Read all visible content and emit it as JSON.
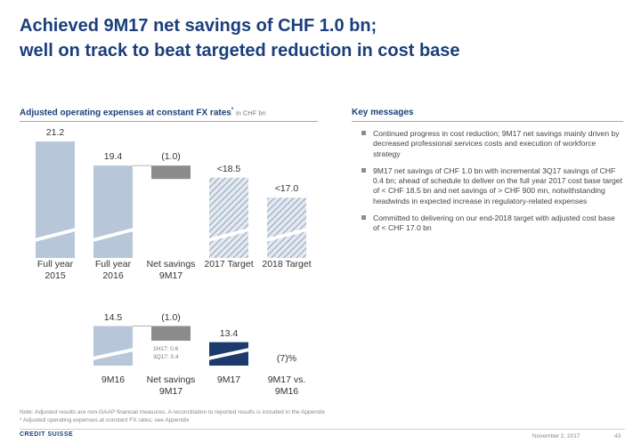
{
  "header": {
    "title": [
      "Achieved 9M17 net savings of CHF 1.0 bn;",
      "well on track to beat targeted reduction in cost base"
    ]
  },
  "chart_data": [
    {
      "type": "waterfall",
      "title": "Adjusted operating expenses at constant FX rates",
      "title_marker": "*",
      "unit": "in CHF bn",
      "categories": [
        "Full year 2015",
        "Full year 2016",
        "Net savings 9M17",
        "2017 Target",
        "2018 Target"
      ],
      "values": [
        21.2,
        19.4,
        -1.0,
        18.5,
        17.0
      ],
      "value_labels": [
        "21.2",
        "19.4",
        "(1.0)",
        "<18.5",
        "<17.0"
      ],
      "kinds": [
        "total",
        "total",
        "delta",
        "total",
        "total"
      ],
      "colors": [
        "#b7c6d8",
        "#b7c6d8",
        "#8c8c8c",
        "#8ea2ba",
        "#8ea2ba"
      ],
      "hatched": [
        false,
        false,
        false,
        true,
        true
      ],
      "ylim": [
        12.5,
        22
      ]
    },
    {
      "type": "waterfall",
      "categories": [
        "9M16",
        "Net savings 9M17",
        "9M17",
        "9M17 vs. 9M16"
      ],
      "values": [
        14.5,
        -1.0,
        13.4,
        -7
      ],
      "value_labels": [
        "14.5",
        "(1.0)",
        "13.4",
        "(7)%"
      ],
      "kinds": [
        "total",
        "delta",
        "total",
        "change"
      ],
      "colors": [
        "#b7c6d8",
        "#8c8c8c",
        "#1c3a6b",
        "#333333"
      ],
      "hatched": [
        false,
        false,
        false,
        false
      ],
      "annotations": [
        "1H17: 0.6",
        "3Q17: 0.4"
      ],
      "ylim": [
        11.8,
        15.2
      ]
    }
  ],
  "key_messages": {
    "title": "Key messages",
    "items": [
      "Continued progress in cost reduction; 9M17 net savings mainly driven by decreased professional services costs and execution of workforce strategy",
      "9M17 net savings of CHF 1.0 bn with incremental 3Q17 savings of CHF 0.4 bn; ahead of schedule to deliver on the full year 2017 cost base target of < CHF 18.5 bn and net savings of > CHF 900 mn, notwithstanding headwinds in expected increase in regulatory-related expenses",
      "Committed to delivering on our end-2018 target with adjusted cost base of < CHF 17.0 bn"
    ]
  },
  "footer": {
    "notes": [
      "Note: Adjusted results are non-GAAP financial measures. A reconciliation to reported results is included in the Appendix",
      "* Adjusted operating expenses at constant FX rates; see Appendix"
    ],
    "logo": "CREDIT SUISSE",
    "date": "November 2, 2017",
    "page": "43"
  }
}
